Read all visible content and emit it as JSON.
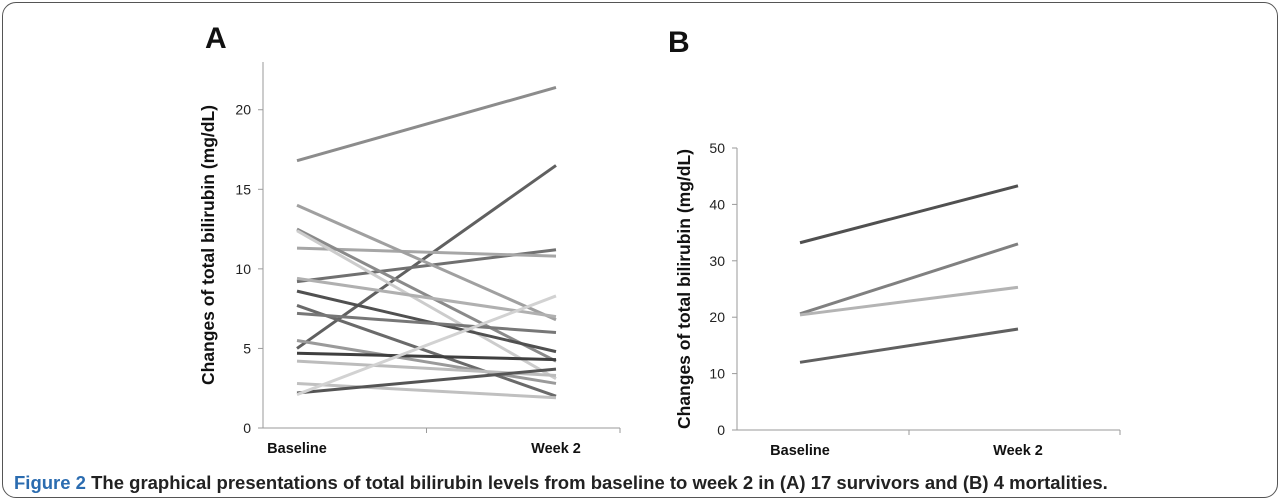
{
  "chart_data": [
    {
      "type": "line",
      "panel_label": "A",
      "title": "",
      "xlabel": "",
      "ylabel": "Changes of total bilirubin (mg/dL)",
      "categories": [
        "Baseline",
        "Week 2"
      ],
      "ylim": [
        0,
        23
      ],
      "yticks": [
        0,
        5,
        10,
        15,
        20
      ],
      "series": [
        {
          "values": [
            16.8,
            21.4
          ],
          "color": "#8c8c8c"
        },
        {
          "values": [
            5.0,
            16.5
          ],
          "color": "#606060"
        },
        {
          "values": [
            9.2,
            11.2
          ],
          "color": "#707070"
        },
        {
          "values": [
            11.3,
            10.8
          ],
          "color": "#a6a6a6"
        },
        {
          "values": [
            14.0,
            6.8
          ],
          "color": "#a0a0a0"
        },
        {
          "values": [
            12.5,
            4.2
          ],
          "color": "#8a8a8a"
        },
        {
          "values": [
            12.4,
            3.1
          ],
          "color": "#cccccc"
        },
        {
          "values": [
            9.4,
            7.0
          ],
          "color": "#b0b0b0"
        },
        {
          "values": [
            8.6,
            4.8
          ],
          "color": "#505050"
        },
        {
          "values": [
            7.7,
            2.0
          ],
          "color": "#6a6a6a"
        },
        {
          "values": [
            7.2,
            6.0
          ],
          "color": "#777777"
        },
        {
          "values": [
            5.5,
            2.8
          ],
          "color": "#9a9a9a"
        },
        {
          "values": [
            4.7,
            4.3
          ],
          "color": "#3f3f3f"
        },
        {
          "values": [
            4.2,
            3.3
          ],
          "color": "#bcbcbc"
        },
        {
          "values": [
            2.8,
            1.9
          ],
          "color": "#c0c0c0"
        },
        {
          "values": [
            2.2,
            3.7
          ],
          "color": "#555555"
        },
        {
          "values": [
            2.1,
            8.3
          ],
          "color": "#d2d2d2"
        }
      ]
    },
    {
      "type": "line",
      "panel_label": "B",
      "title": "",
      "xlabel": "",
      "ylabel": "Changes of total bilirubin (mg/dL)",
      "categories": [
        "Baseline",
        "Week 2"
      ],
      "ylim": [
        0,
        50
      ],
      "yticks": [
        0,
        10,
        20,
        30,
        40,
        50
      ],
      "series": [
        {
          "values": [
            33.2,
            43.3
          ],
          "color": "#505050"
        },
        {
          "values": [
            20.6,
            33.0
          ],
          "color": "#808080"
        },
        {
          "values": [
            20.4,
            25.3
          ],
          "color": "#b4b4b4"
        },
        {
          "values": [
            12.0,
            17.9
          ],
          "color": "#606060"
        }
      ]
    }
  ],
  "caption": {
    "lead": "Figure 2",
    "text": "The graphical presentations of total bilirubin levels from baseline to week 2 in (A) 17 survivors and (B) 4 mortalities."
  }
}
